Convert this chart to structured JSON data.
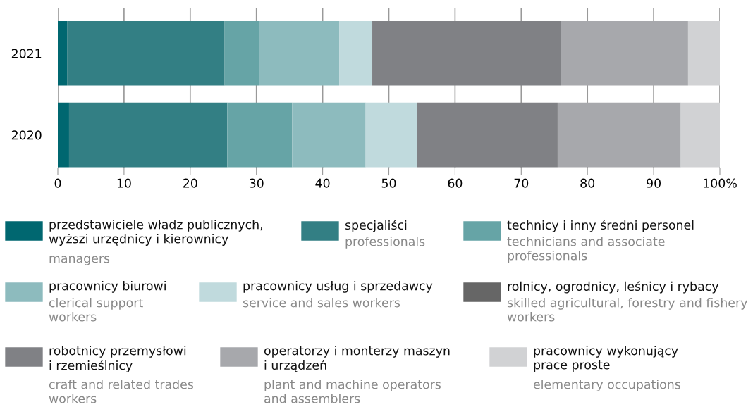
{
  "chart_data": {
    "type": "bar",
    "orientation": "horizontal",
    "stacked": true,
    "categories": [
      "2021",
      "2020"
    ],
    "series": [
      {
        "name": "przedstawiciele władz publicznych,\nwyższi urzędnicy i kierownicy\n\nmanagers",
        "color": "#006770",
        "values": [
          1.4,
          1.7
        ]
      },
      {
        "name": "specjaliści\n\nprofessionals",
        "color": "#337f84",
        "values": [
          23.8,
          23.9
        ]
      },
      {
        "name": "technicy i inny średni personel\n\ntechnicians and associate\nprofessionals",
        "color": "#66a4a6",
        "values": [
          5.2,
          9.8
        ]
      },
      {
        "name": "pracownicy biurowi\n\nclerical support\nworkers",
        "color": "#8dbbbe",
        "values": [
          12.1,
          11.1
        ]
      },
      {
        "name": "pracownicy usług i sprzedawcy\n\nservice and sales workers",
        "color": "#c0dadd",
        "values": [
          5.0,
          7.8
        ]
      },
      {
        "name": "rolnicy, ogrodnicy, leśnicy i rybacy\n\nskilled agricultural, forestry and fishery\nworkers",
        "color": "#666666",
        "values": [
          0,
          0
        ]
      },
      {
        "name": "robotnicy przemysłowi\ni rzemieślnicy\n\ncraft and related trades\nworkers",
        "color": "#808185",
        "values": [
          28.5,
          21.2
        ]
      },
      {
        "name": "operatorzy i monterzy maszyn\ni urządzeń\n\nplant and machine operators\nand assemblers",
        "color": "#a7a8ac",
        "values": [
          19.2,
          18.6
        ]
      },
      {
        "name": "pracownicy wykonujący\nprace proste\n\nelementary occupations",
        "color": "#d1d2d4",
        "values": [
          4.8,
          5.9
        ]
      }
    ],
    "xlim": [
      0,
      100
    ],
    "xticks": [
      0,
      10,
      20,
      30,
      40,
      50,
      60,
      70,
      80,
      90,
      {
        "value": 100,
        "label": "100%"
      }
    ],
    "grid": "x",
    "legend": "bottom"
  }
}
